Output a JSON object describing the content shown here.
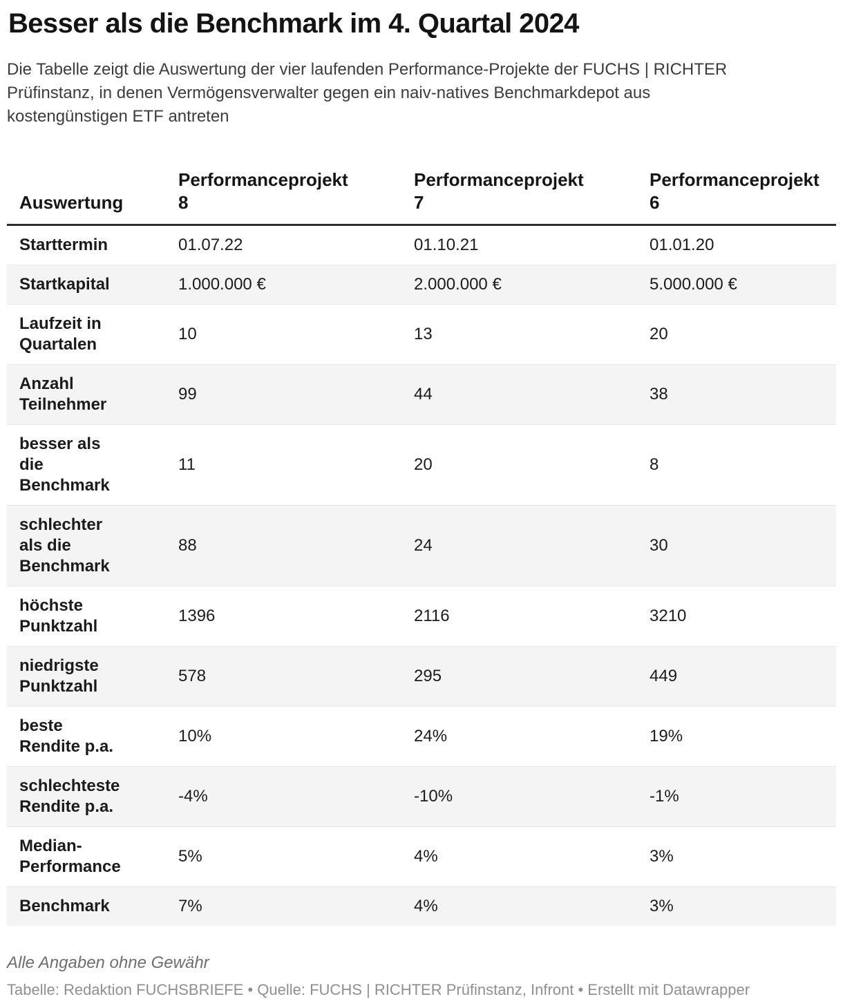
{
  "title": "Besser als die Benchmark im 4. Quartal 2024",
  "description": "Die Tabelle zeigt die Auswertung der vier laufenden Performance-Projekte der FUCHS | RICHTER\nPrüfinstanz, in denen Vermögensverwalter gegen ein naiv-natives Benchmarkdepot aus\nkostengünstigen ETF antreten",
  "table": {
    "header": [
      "Auswertung",
      "Performanceprojekt\n8",
      "Performanceprojekt\n7",
      "Performanceprojekt\n6"
    ],
    "rows": [
      {
        "label": "Starttermin",
        "values": [
          "01.07.22",
          "01.10.21",
          "01.01.20"
        ]
      },
      {
        "label": "Startkapital",
        "values": [
          "1.000.000 €",
          "2.000.000 €",
          "5.000.000 €"
        ]
      },
      {
        "label": "Laufzeit in\nQuartalen",
        "values": [
          "10",
          "13",
          "20"
        ]
      },
      {
        "label": "Anzahl\nTeilnehmer",
        "values": [
          "99",
          "44",
          "38"
        ]
      },
      {
        "label": "besser als\ndie\nBenchmark",
        "values": [
          "11",
          "20",
          "8"
        ]
      },
      {
        "label": "schlechter\nals die\nBenchmark",
        "values": [
          "88",
          "24",
          "30"
        ]
      },
      {
        "label": "höchste\nPunktzahl",
        "values": [
          "1396",
          "2116",
          "3210"
        ]
      },
      {
        "label": "niedrigste\nPunktzahl",
        "values": [
          "578",
          "295",
          "449"
        ]
      },
      {
        "label": "beste\nRendite p.a.",
        "values": [
          "10%",
          "24%",
          "19%"
        ]
      },
      {
        "label": "schlechteste\nRendite p.a.",
        "values": [
          "-4%",
          "-10%",
          "-1%"
        ]
      },
      {
        "label": "Median-\nPerformance",
        "values": [
          "5%",
          "4%",
          "3%"
        ]
      },
      {
        "label": "Benchmark",
        "values": [
          "7%",
          "4%",
          "3%"
        ]
      }
    ]
  },
  "footer": {
    "note": "Alle Angaben ohne Gewähr",
    "attribution": "Tabelle: Redaktion FUCHSBRIEFE • Quelle: FUCHS | RICHTER Prüfinstanz, Infront • Erstellt mit Datawrapper"
  },
  "colors": {
    "title_text": "#141414",
    "body_text": "#1b1b1b",
    "description_text": "#3c3c3c",
    "header_rule": "#2c2c2c",
    "row_divider": "#e8e8e8",
    "zebra_stripe": "#f4f4f4",
    "note_text": "#6e6e6e",
    "attribution_text": "#8f8f8f"
  },
  "chart_data": {
    "type": "table",
    "title": "Besser als die Benchmark im 4. Quartal 2024",
    "subtitle": "Die Tabelle zeigt die Auswertung der vier laufenden Performance-Projekte der FUCHS | RICHTER Prüfinstanz, in denen Vermögensverwalter gegen ein naiv-natives Benchmarkdepot aus kostengünstigen ETF antreten",
    "columns": [
      "Auswertung",
      "Performanceprojekt 8",
      "Performanceprojekt 7",
      "Performanceprojekt 6"
    ],
    "rows": [
      [
        "Starttermin",
        "01.07.22",
        "01.10.21",
        "01.01.20"
      ],
      [
        "Startkapital",
        "1.000.000 €",
        "2.000.000 €",
        "5.000.000 €"
      ],
      [
        "Laufzeit in Quartalen",
        10,
        13,
        20
      ],
      [
        "Anzahl Teilnehmer",
        99,
        44,
        38
      ],
      [
        "besser als die Benchmark",
        11,
        20,
        8
      ],
      [
        "schlechter als die Benchmark",
        88,
        24,
        30
      ],
      [
        "höchste Punktzahl",
        1396,
        2116,
        3210
      ],
      [
        "niedrigste Punktzahl",
        578,
        295,
        449
      ],
      [
        "beste Rendite p.a.",
        "10%",
        "24%",
        "19%"
      ],
      [
        "schlechteste Rendite p.a.",
        "-4%",
        "-10%",
        "-1%"
      ],
      [
        "Median-Performance",
        "5%",
        "4%",
        "3%"
      ],
      [
        "Benchmark",
        "7%",
        "4%",
        "3%"
      ]
    ],
    "notes": "Alle Angaben ohne Gewähr",
    "source": "Tabelle: Redaktion FUCHSBRIEFE • Quelle: FUCHS | RICHTER Prüfinstanz, Infront • Erstellt mit Datawrapper",
    "layout_hints": {
      "zebra_striping": true,
      "header_bottom_rule": true,
      "clipped_right_edge": true
    }
  }
}
